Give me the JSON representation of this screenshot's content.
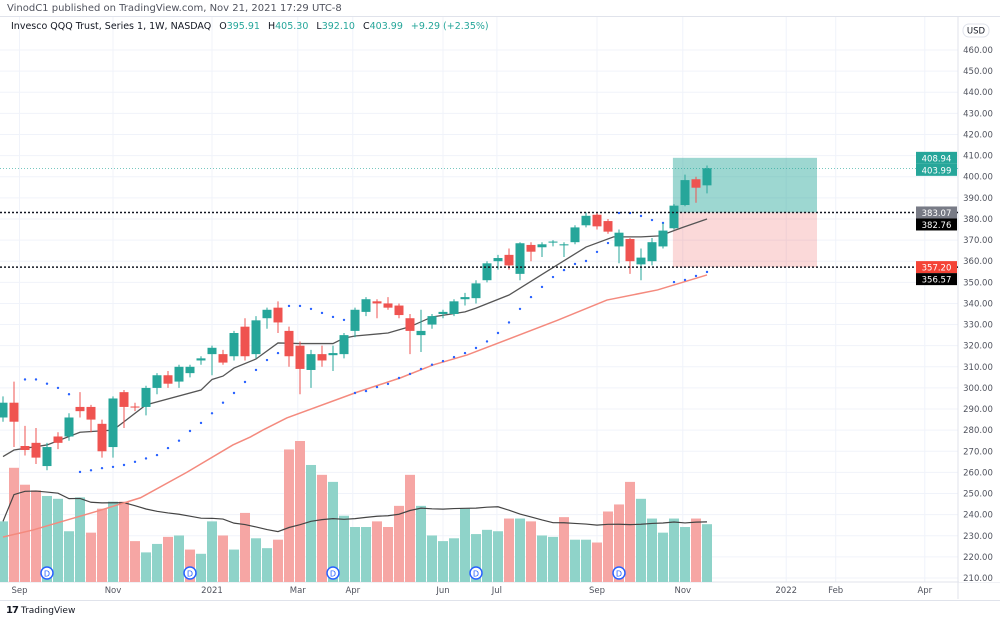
{
  "header": {
    "published": "VinodC1 published on TradingView.com, Nov 21, 2021 17:29 UTC-8"
  },
  "legend": {
    "symbol": "Invesco QQQ Trust, Series 1, 1W, NASDAQ",
    "o_label": "O",
    "o": "395.91",
    "h_label": "H",
    "h": "405.30",
    "l_label": "L",
    "l": "392.10",
    "c_label": "C",
    "c": "403.99",
    "change": "+9.29 (+2.35%)"
  },
  "footer": {
    "brand": "TradingView",
    "logo": "TV"
  },
  "colors": {
    "up": "#26a69a",
    "down": "#ef5350",
    "vol_up": "#8fd3c9",
    "vol_down": "#f6a6a4",
    "ma_short": "#555555",
    "ma_long": "#f48a7e",
    "sar": "#2962ff",
    "target_zone": "#26a69a",
    "stop_zone": "#ef5350"
  },
  "chart_data": {
    "type": "candlestick",
    "title": "",
    "currency": "USD",
    "ylim": [
      205,
      465
    ],
    "y_ticks": [
      210,
      220,
      230,
      240,
      250,
      260,
      270,
      280,
      290,
      300,
      310,
      320,
      330,
      340,
      350,
      360,
      370,
      380,
      390,
      400,
      410,
      420,
      430,
      440,
      450,
      460
    ],
    "x_labels": [
      {
        "label": "Sep",
        "week": 1.5
      },
      {
        "label": "Nov",
        "week": 10
      },
      {
        "label": "2021",
        "week": 19
      },
      {
        "label": "Mar",
        "week": 26.8
      },
      {
        "label": "Apr",
        "week": 31.8
      },
      {
        "label": "Jun",
        "week": 40
      },
      {
        "label": "Jul",
        "week": 44.9
      },
      {
        "label": "Sep",
        "week": 54
      },
      {
        "label": "Nov",
        "week": 61.8
      },
      {
        "label": "2022",
        "week": 71.2
      },
      {
        "label": "Feb",
        "week": 75.7
      },
      {
        "label": "Apr",
        "week": 83.8
      }
    ],
    "x_range_weeks": [
      -0.3,
      87
    ],
    "candles": [
      [
        286,
        296,
        284,
        293
      ],
      [
        293,
        303,
        272,
        284
      ],
      [
        272.5,
        282,
        268,
        270.6
      ],
      [
        274,
        281,
        264,
        267
      ],
      [
        263,
        274,
        261,
        272
      ],
      [
        277,
        279,
        271,
        274
      ],
      [
        277,
        288,
        275,
        286
      ],
      [
        291,
        298,
        286,
        289
      ],
      [
        291,
        292,
        279,
        285
      ],
      [
        283,
        285,
        267,
        270
      ],
      [
        272,
        296,
        267,
        295
      ],
      [
        298,
        299,
        281,
        291
      ],
      [
        291.2,
        293,
        289,
        290.7
      ],
      [
        291,
        301,
        287,
        300
      ],
      [
        300,
        307,
        297,
        306
      ],
      [
        306,
        308,
        300,
        302
      ],
      [
        303,
        311,
        300,
        310
      ],
      [
        307,
        311,
        305,
        310
      ],
      [
        313,
        315,
        311,
        314
      ],
      [
        316,
        320,
        306,
        319
      ],
      [
        316,
        318,
        311,
        312
      ],
      [
        315,
        327,
        313,
        326
      ],
      [
        329,
        333,
        313,
        315
      ],
      [
        316,
        334,
        314,
        332
      ],
      [
        333,
        338,
        328,
        337
      ],
      [
        338,
        341,
        326,
        331
      ],
      [
        327,
        329,
        310,
        315
      ],
      [
        320,
        322,
        297,
        309
      ],
      [
        308.5,
        318,
        300,
        316
      ],
      [
        316,
        320,
        310,
        313
      ],
      [
        315.5,
        320,
        308,
        316.5
      ],
      [
        316,
        326,
        314,
        325
      ],
      [
        327,
        338,
        324,
        337
      ],
      [
        336,
        343,
        334,
        342
      ],
      [
        341,
        342,
        333,
        340
      ],
      [
        340,
        343,
        337,
        338
      ],
      [
        339,
        340,
        333,
        334.5
      ],
      [
        333,
        335,
        316,
        327
      ],
      [
        325,
        337,
        317,
        327
      ],
      [
        330,
        335,
        328,
        334
      ],
      [
        335,
        337,
        333,
        336
      ],
      [
        335,
        342,
        334,
        341
      ],
      [
        342,
        345,
        339,
        343
      ],
      [
        342.5,
        351,
        340,
        349.5
      ],
      [
        351,
        360,
        350,
        359
      ],
      [
        360,
        363,
        356,
        361.5
      ],
      [
        363,
        366,
        356,
        358
      ],
      [
        354,
        369,
        351,
        368.5
      ],
      [
        367.7,
        369,
        360,
        364.5
      ],
      [
        366.6,
        369,
        362,
        368
      ],
      [
        368.8,
        370,
        367,
        369.3
      ],
      [
        367.5,
        369,
        362,
        368
      ],
      [
        369,
        377,
        368,
        376
      ],
      [
        377,
        383,
        376,
        381.5
      ],
      [
        382,
        383,
        375,
        376.5
      ],
      [
        379,
        380,
        373,
        374
      ],
      [
        367,
        375,
        359,
        373.5
      ],
      [
        370.5,
        371,
        354,
        360
      ],
      [
        358.5,
        366,
        351,
        361.7
      ],
      [
        360,
        371,
        358,
        369
      ],
      [
        367,
        378,
        366,
        374.5
      ],
      [
        375.6,
        387,
        375,
        386.3
      ],
      [
        386.6,
        401,
        386,
        398.4
      ],
      [
        398.8,
        400,
        387.7,
        394.8
      ],
      [
        395.91,
        405.3,
        392.1,
        403.99
      ]
    ],
    "volume_relative": [
      43,
      81,
      69,
      65,
      61,
      59,
      36,
      60,
      35,
      52,
      57,
      57,
      29,
      21,
      27,
      32,
      33,
      23,
      20,
      43,
      33,
      23,
      49,
      31,
      24,
      30,
      94,
      100,
      83,
      76,
      71,
      47,
      39,
      39,
      43,
      39,
      54,
      76,
      54,
      33,
      29,
      31,
      52,
      34,
      37,
      36,
      45,
      45,
      43,
      33,
      32,
      46,
      30,
      30,
      28,
      50,
      55,
      71,
      59,
      45,
      35,
      45,
      39,
      45,
      41
    ],
    "volume_up": [
      1,
      0,
      0,
      0,
      1,
      1,
      1,
      1,
      0,
      0,
      1,
      0,
      0,
      1,
      1,
      0,
      1,
      0,
      1,
      1,
      0,
      1,
      0,
      1,
      1,
      0,
      0,
      0,
      1,
      0,
      1,
      1,
      1,
      1,
      0,
      0,
      0,
      0,
      1,
      1,
      1,
      1,
      1,
      1,
      1,
      1,
      0,
      1,
      0,
      1,
      1,
      0,
      1,
      1,
      0,
      0,
      0,
      0,
      1,
      1,
      1,
      1,
      1,
      0,
      1
    ],
    "ma_short": [
      [
        0,
        267.5
      ],
      [
        1,
        270.6
      ],
      [
        4,
        273
      ],
      [
        7,
        279
      ],
      [
        10,
        280
      ],
      [
        13,
        292
      ],
      [
        18,
        299
      ],
      [
        19,
        304
      ],
      [
        20,
        305.6
      ],
      [
        21,
        309.4
      ],
      [
        23,
        313.7
      ],
      [
        25,
        321.3
      ],
      [
        27,
        321
      ],
      [
        30,
        321
      ],
      [
        31,
        323.6
      ],
      [
        32,
        324.6
      ],
      [
        35,
        326
      ],
      [
        37,
        329
      ],
      [
        39,
        333.6
      ],
      [
        42,
        336
      ],
      [
        43,
        337.8
      ],
      [
        46,
        344
      ],
      [
        50,
        357
      ],
      [
        53,
        366.7
      ],
      [
        55.5,
        371.5
      ],
      [
        58,
        371.5
      ],
      [
        59.7,
        372
      ],
      [
        61.8,
        376
      ],
      [
        64,
        380
      ]
    ],
    "ma_long": [
      [
        0,
        229.4
      ],
      [
        2.7,
        232.7
      ],
      [
        8.8,
        242
      ],
      [
        12.5,
        248
      ],
      [
        16.7,
        260
      ],
      [
        20.9,
        273
      ],
      [
        22.5,
        276.8
      ],
      [
        23.6,
        280
      ],
      [
        25.8,
        285.8
      ],
      [
        32.2,
        298
      ],
      [
        36.1,
        304.7
      ],
      [
        39.1,
        310.9
      ],
      [
        42.2,
        315.6
      ],
      [
        50.4,
        332
      ],
      [
        54.9,
        341.6
      ],
      [
        59.5,
        346.4
      ],
      [
        64,
        353.5
      ]
    ],
    "sar": [
      [
        2,
        304
      ],
      [
        3,
        304
      ],
      [
        4,
        302
      ],
      [
        5,
        300
      ],
      [
        6,
        297
      ],
      [
        7,
        260.2
      ],
      [
        8,
        261
      ],
      [
        9,
        262
      ],
      [
        10,
        262.6
      ],
      [
        11,
        263.5
      ],
      [
        12,
        265
      ],
      [
        13,
        266.6
      ],
      [
        14,
        268.2
      ],
      [
        15,
        271.5
      ],
      [
        16,
        275
      ],
      [
        17,
        279.6
      ],
      [
        18,
        283.4
      ],
      [
        19,
        288
      ],
      [
        20,
        293
      ],
      [
        21,
        297.6
      ],
      [
        22,
        302.8
      ],
      [
        23,
        308.5
      ],
      [
        24,
        313.2
      ],
      [
        25,
        316.5
      ],
      [
        26,
        338.8
      ],
      [
        27,
        338.8
      ],
      [
        28,
        337.4
      ],
      [
        29,
        335.5
      ],
      [
        30,
        333.6
      ],
      [
        31,
        332.2
      ],
      [
        32,
        297.6
      ],
      [
        33,
        298.5
      ],
      [
        34,
        300.4
      ],
      [
        35,
        301.9
      ],
      [
        36,
        304.7
      ],
      [
        37,
        306.6
      ],
      [
        38,
        309
      ],
      [
        39,
        311
      ],
      [
        40,
        312.7
      ],
      [
        41,
        314.6
      ],
      [
        42,
        316.5
      ],
      [
        43,
        318.9
      ],
      [
        44,
        322
      ],
      [
        45,
        326
      ],
      [
        46,
        331
      ],
      [
        47,
        337.4
      ],
      [
        48,
        343
      ],
      [
        49,
        347.8
      ],
      [
        50,
        352.5
      ],
      [
        51,
        355.8
      ],
      [
        52,
        358.7
      ],
      [
        53,
        360.1
      ],
      [
        54,
        364.4
      ],
      [
        55,
        368.6
      ],
      [
        56,
        382.8
      ],
      [
        57,
        382.8
      ],
      [
        58,
        381.4
      ],
      [
        59,
        379.5
      ],
      [
        60,
        378.1
      ],
      [
        61,
        350.1
      ],
      [
        62,
        351.1
      ],
      [
        63,
        353
      ],
      [
        64,
        354.9
      ]
    ],
    "dividends": [
      4,
      17,
      30,
      43,
      56
    ],
    "dividend_label": "D",
    "position": {
      "start_week": 60.9,
      "end_week": 74,
      "target": 408.94,
      "entry": 383.07,
      "stop": 357.2
    },
    "levels": [
      383.07,
      357.2
    ],
    "price_labels": [
      {
        "text": "408.94",
        "price": 408.94,
        "bg": "#26a69a",
        "fg": "#ffffff"
      },
      {
        "text": "403.99",
        "price": 403.99,
        "bg": "#26a69a",
        "fg": "#ffffff"
      },
      {
        "text": "383.07",
        "price": 383.07,
        "bg": "#787b86",
        "fg": "#ffffff"
      },
      {
        "text": "382.76",
        "price": 382.76,
        "bg": "#000000",
        "fg": "#ffffff"
      },
      {
        "text": "357.20",
        "price": 357.2,
        "bg": "#f44336",
        "fg": "#ffffff"
      },
      {
        "text": "356.57",
        "price": 356.57,
        "bg": "#000000",
        "fg": "#ffffff"
      }
    ],
    "last_price": 403.99
  }
}
